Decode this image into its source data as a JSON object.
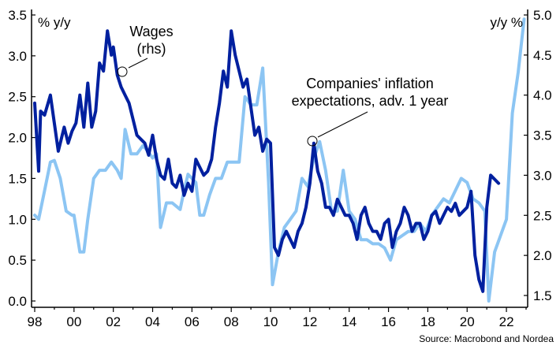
{
  "chart_data": {
    "type": "line",
    "left_axis": {
      "label": "% y/y",
      "range": [
        0.0,
        3.5
      ],
      "ticks": [
        "0.0",
        "0.5",
        "1.0",
        "1.5",
        "2.0",
        "2.5",
        "3.0",
        "3.5"
      ]
    },
    "right_axis": {
      "label": "y/y %",
      "range": [
        1.5,
        5.0
      ],
      "ticks": [
        "1.5",
        "2.0",
        "2.5",
        "3.0",
        "3.5",
        "4.0",
        "4.5",
        "5.0"
      ]
    },
    "x_axis": {
      "range": [
        1998,
        2023
      ],
      "ticks": [
        "98",
        "00",
        "02",
        "04",
        "06",
        "08",
        "10",
        "12",
        "14",
        "16",
        "18",
        "20",
        "22"
      ]
    },
    "grid": false,
    "annotations": [
      {
        "text_lines": [
          "Wages",
          "(rhs)"
        ],
        "series": "wages"
      },
      {
        "text_lines": [
          "Companies' inflation",
          "expectations, adv. 1 year"
        ],
        "series": "expectations"
      }
    ],
    "source": "Source: Macrobond and Nordea",
    "colors": {
      "wages": "#00209f",
      "expectations": "#8cc5f3",
      "axis": "#000000"
    },
    "series": [
      {
        "id": "expectations",
        "axis": "left",
        "x": [
          1998.0,
          1998.2,
          1998.5,
          1998.8,
          1999.0,
          1999.3,
          1999.6,
          1999.9,
          2000.0,
          2000.3,
          2000.5,
          2000.7,
          2001.0,
          2001.3,
          2001.6,
          2001.9,
          2002.2,
          2002.4,
          2002.6,
          2002.9,
          2003.2,
          2003.5,
          2003.7,
          2004.0,
          2004.2,
          2004.4,
          2004.7,
          2005.0,
          2005.4,
          2005.6,
          2005.8,
          2006.2,
          2006.4,
          2006.6,
          2006.9,
          2007.2,
          2007.5,
          2007.8,
          2008.1,
          2008.4,
          2008.7,
          2009.0,
          2009.3,
          2009.6,
          2009.9,
          2010.1,
          2010.4,
          2010.7,
          2011.0,
          2011.3,
          2011.6,
          2011.9,
          2012.2,
          2012.5,
          2012.8,
          2013.1,
          2013.4,
          2013.7,
          2014.0,
          2014.3,
          2014.6,
          2014.9,
          2015.2,
          2015.5,
          2015.8,
          2016.1,
          2016.4,
          2016.7,
          2017.0,
          2017.3,
          2017.6,
          2017.9,
          2018.2,
          2018.5,
          2018.8,
          2019.1,
          2019.4,
          2019.7,
          2020.0,
          2020.3,
          2020.6,
          2020.9,
          2021.1,
          2021.4,
          2021.7,
          2022.0,
          2022.3,
          2022.6,
          2022.9
        ],
        "y": [
          1.05,
          1.0,
          1.35,
          1.7,
          1.72,
          1.5,
          1.1,
          1.05,
          1.05,
          0.6,
          0.6,
          1.0,
          1.5,
          1.6,
          1.6,
          1.7,
          1.6,
          1.5,
          2.1,
          1.8,
          1.8,
          1.9,
          1.85,
          1.75,
          1.8,
          0.9,
          1.2,
          1.2,
          1.12,
          1.35,
          1.55,
          1.45,
          1.05,
          1.05,
          1.3,
          1.5,
          1.5,
          1.7,
          1.7,
          1.7,
          2.5,
          2.4,
          2.4,
          2.85,
          1.45,
          0.2,
          0.6,
          0.9,
          1.0,
          1.1,
          1.5,
          1.4,
          1.75,
          1.95,
          1.6,
          1.1,
          1.1,
          1.6,
          1.1,
          1.0,
          0.75,
          0.75,
          0.7,
          0.7,
          0.65,
          0.5,
          0.75,
          0.8,
          0.85,
          0.85,
          0.95,
          0.85,
          1.05,
          1.15,
          1.25,
          1.2,
          1.35,
          1.5,
          1.45,
          1.25,
          1.2,
          1.1,
          0.0,
          0.6,
          0.8,
          1.0,
          2.3,
          2.8,
          3.45
        ]
      },
      {
        "id": "wages",
        "axis": "right",
        "x": [
          1998.0,
          1998.2,
          1998.3,
          1998.5,
          1998.8,
          1999.0,
          1999.2,
          1999.5,
          1999.7,
          1999.9,
          2000.1,
          2000.3,
          2000.5,
          2000.7,
          2000.9,
          2001.1,
          2001.3,
          2001.5,
          2001.7,
          2001.9,
          2002.0,
          2002.2,
          2002.4,
          2002.6,
          2002.8,
          2003.0,
          2003.2,
          2003.4,
          2003.6,
          2003.8,
          2004.0,
          2004.2,
          2004.4,
          2004.6,
          2004.8,
          2005.0,
          2005.2,
          2005.4,
          2005.6,
          2005.8,
          2006.0,
          2006.2,
          2006.4,
          2006.6,
          2006.8,
          2007.0,
          2007.2,
          2007.4,
          2007.6,
          2007.8,
          2008.0,
          2008.2,
          2008.4,
          2008.6,
          2008.8,
          2009.0,
          2009.2,
          2009.4,
          2009.6,
          2009.8,
          2010.0,
          2010.2,
          2010.4,
          2010.6,
          2010.8,
          2011.0,
          2011.2,
          2011.4,
          2011.6,
          2011.8,
          2012.0,
          2012.2,
          2012.4,
          2012.6,
          2012.8,
          2013.0,
          2013.2,
          2013.4,
          2013.6,
          2013.8,
          2014.0,
          2014.2,
          2014.4,
          2014.6,
          2014.8,
          2015.0,
          2015.2,
          2015.4,
          2015.6,
          2015.8,
          2016.0,
          2016.2,
          2016.4,
          2016.6,
          2016.8,
          2017.0,
          2017.2,
          2017.4,
          2017.6,
          2017.8,
          2018.0,
          2018.2,
          2018.4,
          2018.6,
          2018.8,
          2019.0,
          2019.2,
          2019.4,
          2019.6,
          2019.8,
          2020.0,
          2020.2,
          2020.4,
          2020.6,
          2020.8,
          2021.0,
          2021.2,
          2021.4,
          2021.6
        ],
        "y": [
          3.9,
          3.05,
          3.8,
          3.75,
          4.0,
          3.65,
          3.3,
          3.6,
          3.4,
          3.55,
          3.65,
          4.0,
          3.6,
          4.15,
          3.6,
          3.8,
          4.4,
          4.3,
          4.8,
          4.5,
          4.6,
          4.25,
          4.1,
          4.0,
          3.9,
          3.7,
          3.5,
          3.45,
          3.4,
          3.25,
          3.5,
          3.2,
          3.0,
          2.95,
          3.2,
          2.9,
          2.85,
          3.0,
          2.75,
          2.9,
          2.8,
          3.2,
          3.1,
          3.0,
          3.05,
          3.2,
          3.6,
          3.9,
          4.3,
          4.1,
          4.8,
          4.5,
          4.3,
          4.1,
          4.2,
          3.85,
          3.5,
          3.6,
          3.3,
          3.45,
          3.4,
          2.1,
          2.0,
          2.2,
          2.3,
          2.2,
          2.1,
          2.3,
          2.4,
          2.6,
          2.9,
          3.4,
          3.05,
          2.9,
          2.6,
          2.6,
          2.5,
          2.7,
          2.6,
          2.5,
          2.5,
          2.4,
          2.2,
          2.5,
          2.6,
          2.4,
          2.3,
          2.3,
          2.2,
          2.4,
          2.45,
          2.1,
          2.3,
          2.4,
          2.6,
          2.5,
          2.3,
          2.4,
          2.4,
          2.2,
          2.3,
          2.5,
          2.55,
          2.4,
          2.5,
          2.6,
          2.55,
          2.65,
          2.5,
          2.55,
          2.6,
          2.8,
          2.0,
          1.7,
          1.55,
          2.6,
          3.0,
          2.95,
          2.9
        ]
      }
    ]
  }
}
